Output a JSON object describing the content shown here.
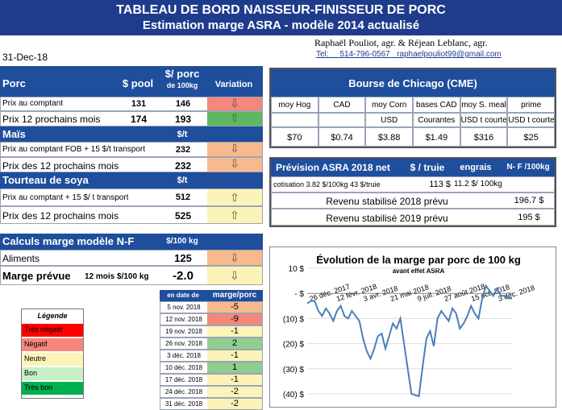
{
  "title": {
    "line1": "TABLEAU DE BORD NAISSEUR-FINISSEUR DE PORC",
    "line2": "Estimation marge ASRA - modèle 2014 actualisé"
  },
  "authors": {
    "text": "Raphaël Pouliot, agr.    &    Réjean Leblanc, agr.",
    "phone_label": "Tel:",
    "phone": "514-796-0567",
    "email": "raphaelpouliot99@gmail.com"
  },
  "date": "31-Dec-18",
  "porc": {
    "header": "Porc",
    "col_pool": "$ pool",
    "col_porc": "$/ porc",
    "col_porc2": "de 100kg",
    "col_var": "Variation",
    "rows": [
      {
        "label": "Prix au comptant",
        "pool": "131",
        "porc": "146",
        "arrow": "⇩",
        "color": "#f4877a"
      },
      {
        "label": "Prix 12 prochains mois",
        "pool": "174",
        "porc": "193",
        "arrow": "⇧",
        "color": "#5fb75f"
      }
    ]
  },
  "mais": {
    "header": "Maïs",
    "unit": "$/t",
    "rows": [
      {
        "label": "Prix au comptant  FOB + 15 $/t transport",
        "value": "232",
        "arrow": "⇩",
        "color": "#f8b98c"
      },
      {
        "label": "Prix des 12 prochains mois",
        "value": "232",
        "arrow": "⇩",
        "color": "#f8b98c"
      }
    ]
  },
  "soya": {
    "header": "Tourteau de soya",
    "unit": "$/t",
    "rows": [
      {
        "label": "Prix au comptant + 15 $/ t  transport",
        "value": "512",
        "arrow": "⇧",
        "color": "#fcf3b8"
      },
      {
        "label": "Prix des 12 prochains mois",
        "value": "525",
        "arrow": "⇧",
        "color": "#fcf3b8"
      }
    ]
  },
  "calculs": {
    "header": "Calculs marge  modèle N-F",
    "unit": "$/100 kg",
    "aliments_label": "Aliments",
    "aliments_value": "125",
    "marge_label": "Marge prévue",
    "marge_sub": "12 mois  $/100 kg",
    "marge_value": "-2.0"
  },
  "history": {
    "col_date": "en date de",
    "col_marge": "marge/porc",
    "rows": [
      {
        "date": "5 nov. 2018",
        "value": "-5",
        "color": "#f8b98c"
      },
      {
        "date": "12 nov. 2018",
        "value": "-9",
        "color": "#f4877a"
      },
      {
        "date": "19 nov. 2018",
        "value": "-1",
        "color": "#fcf3b8"
      },
      {
        "date": "26 nov. 2018",
        "value": "2",
        "color": "#8fce8f"
      },
      {
        "date": "3 déc. 2018",
        "value": "-1",
        "color": "#fcf3b8"
      },
      {
        "date": "10 déc. 2018",
        "value": "1",
        "color": "#8fce8f"
      },
      {
        "date": "17 déc. 2018",
        "value": "-1",
        "color": "#fcf3b8"
      },
      {
        "date": "24 déc. 2018",
        "value": "-2",
        "color": "#fcf3b8"
      },
      {
        "date": "31 déc. 2018",
        "value": "-2",
        "color": "#fcf3b8"
      }
    ]
  },
  "legende": {
    "title": "Légende",
    "items": [
      {
        "label": "Très négatif",
        "color": "#ff0000"
      },
      {
        "label": "Négatif",
        "color": "#f4877a"
      },
      {
        "label": "Neutre",
        "color": "#fcf3b8"
      },
      {
        "label": "Bon",
        "color": "#c6efc6"
      },
      {
        "label": "Très bon",
        "color": "#00b050"
      }
    ]
  },
  "bourse": {
    "header": "Bourse de Chicago (CME)",
    "cols": [
      {
        "h1": "moy Hog",
        "h2": "",
        "value": "$70"
      },
      {
        "h1": "CAD",
        "h2": "",
        "value": "$0.74"
      },
      {
        "h1": "moy Corn",
        "h2": "USD",
        "value": "$3.88"
      },
      {
        "h1": "bases CAD",
        "h2": "Courantes",
        "value": "$1.49"
      },
      {
        "h1": "moy S. meal",
        "h2": "USD t courte",
        "value": "$316"
      },
      {
        "h1": "prime",
        "h2": "USD t courte",
        "value": "$25"
      }
    ]
  },
  "prevision": {
    "header": "Prévision  ASRA 2018 net",
    "col_truie": "$ / truie",
    "col_engrais": "engrais",
    "col_nf": "N- F /100kg",
    "cotisation_label": "cotisation 3.82 $/100kg  43 $/truie",
    "cotisation_truie": "113  $",
    "cotisation_engrais": "11.2 $/ 100kg",
    "revenu2018_label": "Revenu stabilisé 2018 prévu",
    "revenu2018_value": "196.7 $",
    "revenu2019_label": "Revenu stabilisé 2019 prévu",
    "revenu2019_value": "195 $"
  },
  "chart_data": {
    "type": "line",
    "title": "Évolution de la marge par porc de 100 kg",
    "subtitle": "avant effet ASRA",
    "ylim": [
      -40,
      10
    ],
    "yticks": [
      "10 $",
      "-  $",
      "(10) $",
      "(20) $",
      "(30) $",
      "(40) $"
    ],
    "ytick_values": [
      10,
      0,
      -10,
      -20,
      -30,
      -40
    ],
    "xtick_labels": [
      "26 déc. 2017",
      "12 févr. 2018",
      "3 avr. 2018",
      "21 mai 2018",
      "9 juil. 2018",
      "27 août 2018",
      "15 oct. 2018",
      "3 déc. 2018"
    ],
    "series": [
      {
        "values": [
          -4,
          -3,
          -3,
          -7,
          -9,
          -6,
          -8,
          -11,
          -7,
          -5,
          -9,
          -10,
          -7,
          -9,
          -11,
          -18,
          -23,
          -26,
          -22,
          -17,
          -16,
          -22,
          -17,
          -12,
          -14,
          -10,
          -20,
          -30,
          -40,
          -40.5,
          -41,
          -29,
          -18,
          -15,
          -21,
          -10,
          -7,
          -9,
          -11,
          -6,
          -8,
          -14,
          -12,
          -9,
          -5,
          -8,
          -10,
          -2,
          3,
          1,
          -1,
          2,
          -1,
          -1,
          -2,
          -2
        ]
      }
    ]
  }
}
